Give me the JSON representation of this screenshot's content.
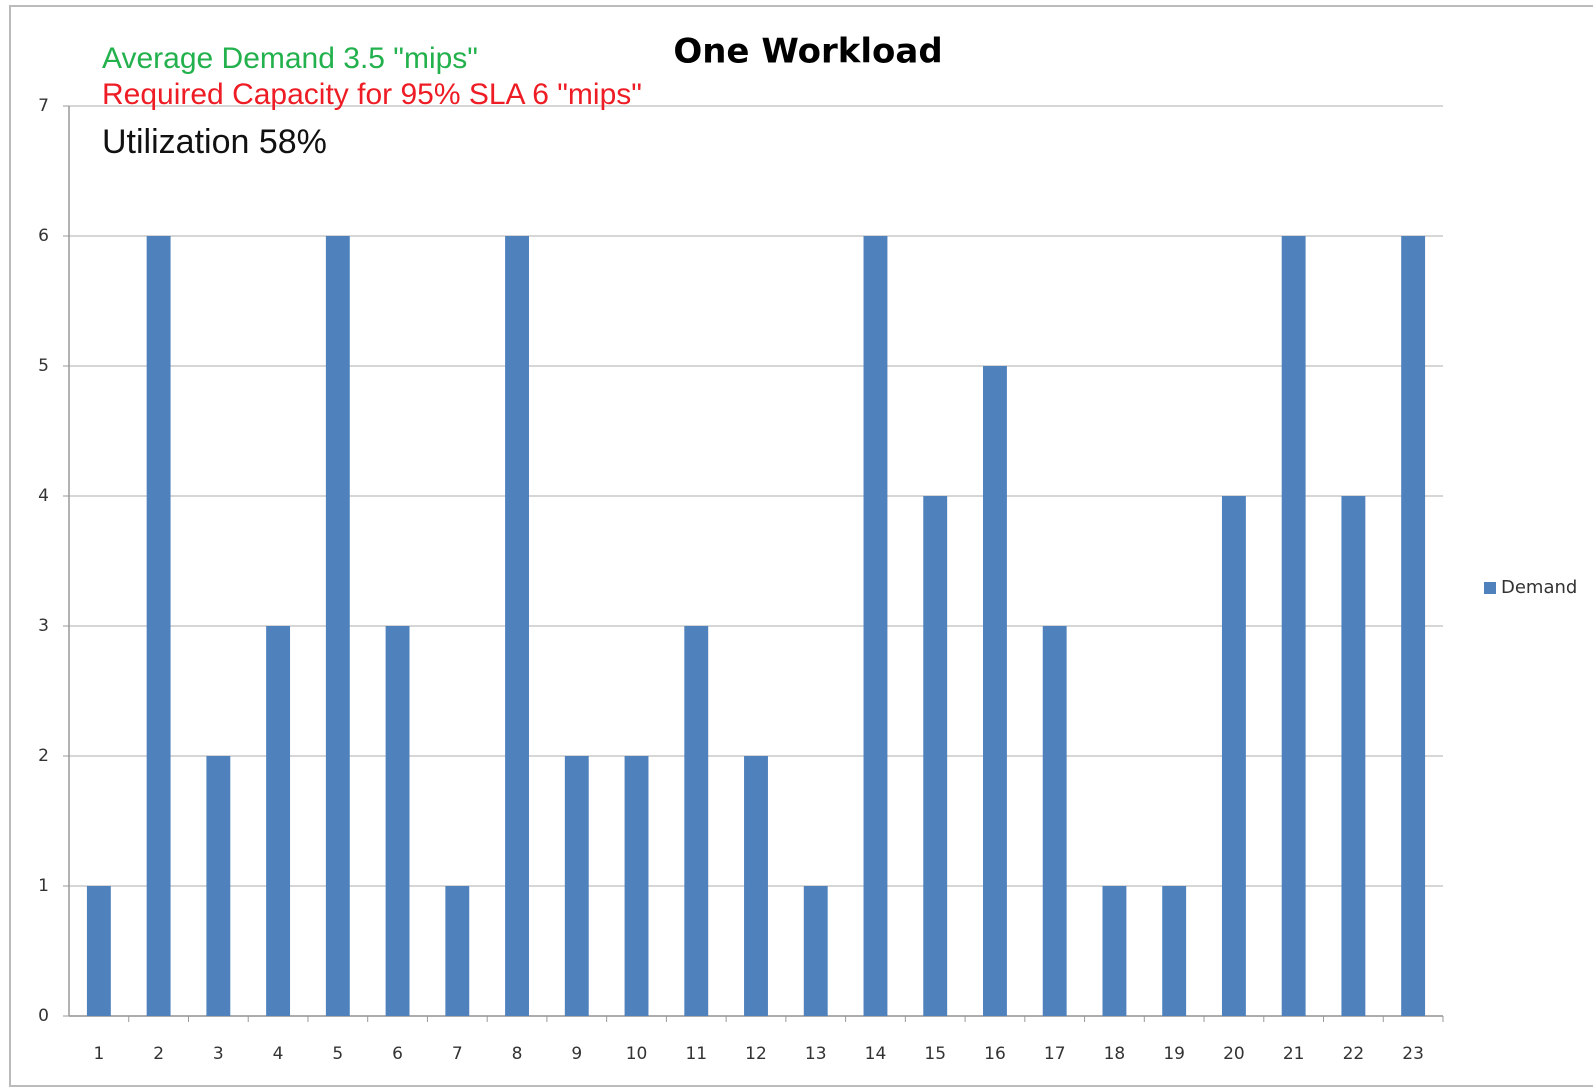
{
  "chart_data": {
    "type": "bar",
    "title": "One Workload",
    "annotations": [
      {
        "text": "Average Demand 3.5 \"mips\"",
        "color": "#22b14c"
      },
      {
        "text": "Required Capacity for 95% SLA 6 \"mips\"",
        "color": "#ee1c24"
      },
      {
        "text": "Utilization 58%",
        "color": "#111111"
      }
    ],
    "categories": [
      "1",
      "2",
      "3",
      "4",
      "5",
      "6",
      "7",
      "8",
      "9",
      "10",
      "11",
      "12",
      "13",
      "14",
      "15",
      "16",
      "17",
      "18",
      "19",
      "20",
      "21",
      "22",
      "23"
    ],
    "series": [
      {
        "name": "Demand",
        "color": "#4f81bd",
        "values": [
          1,
          6,
          2,
          3,
          6,
          3,
          1,
          6,
          2,
          2,
          3,
          2,
          1,
          6,
          4,
          5,
          3,
          1,
          1,
          4,
          6,
          4,
          6
        ]
      }
    ],
    "ylim": [
      0,
      7
    ],
    "yticks": [
      0,
      1,
      2,
      3,
      4,
      5,
      6,
      7
    ],
    "grid": true,
    "legend": "right"
  }
}
